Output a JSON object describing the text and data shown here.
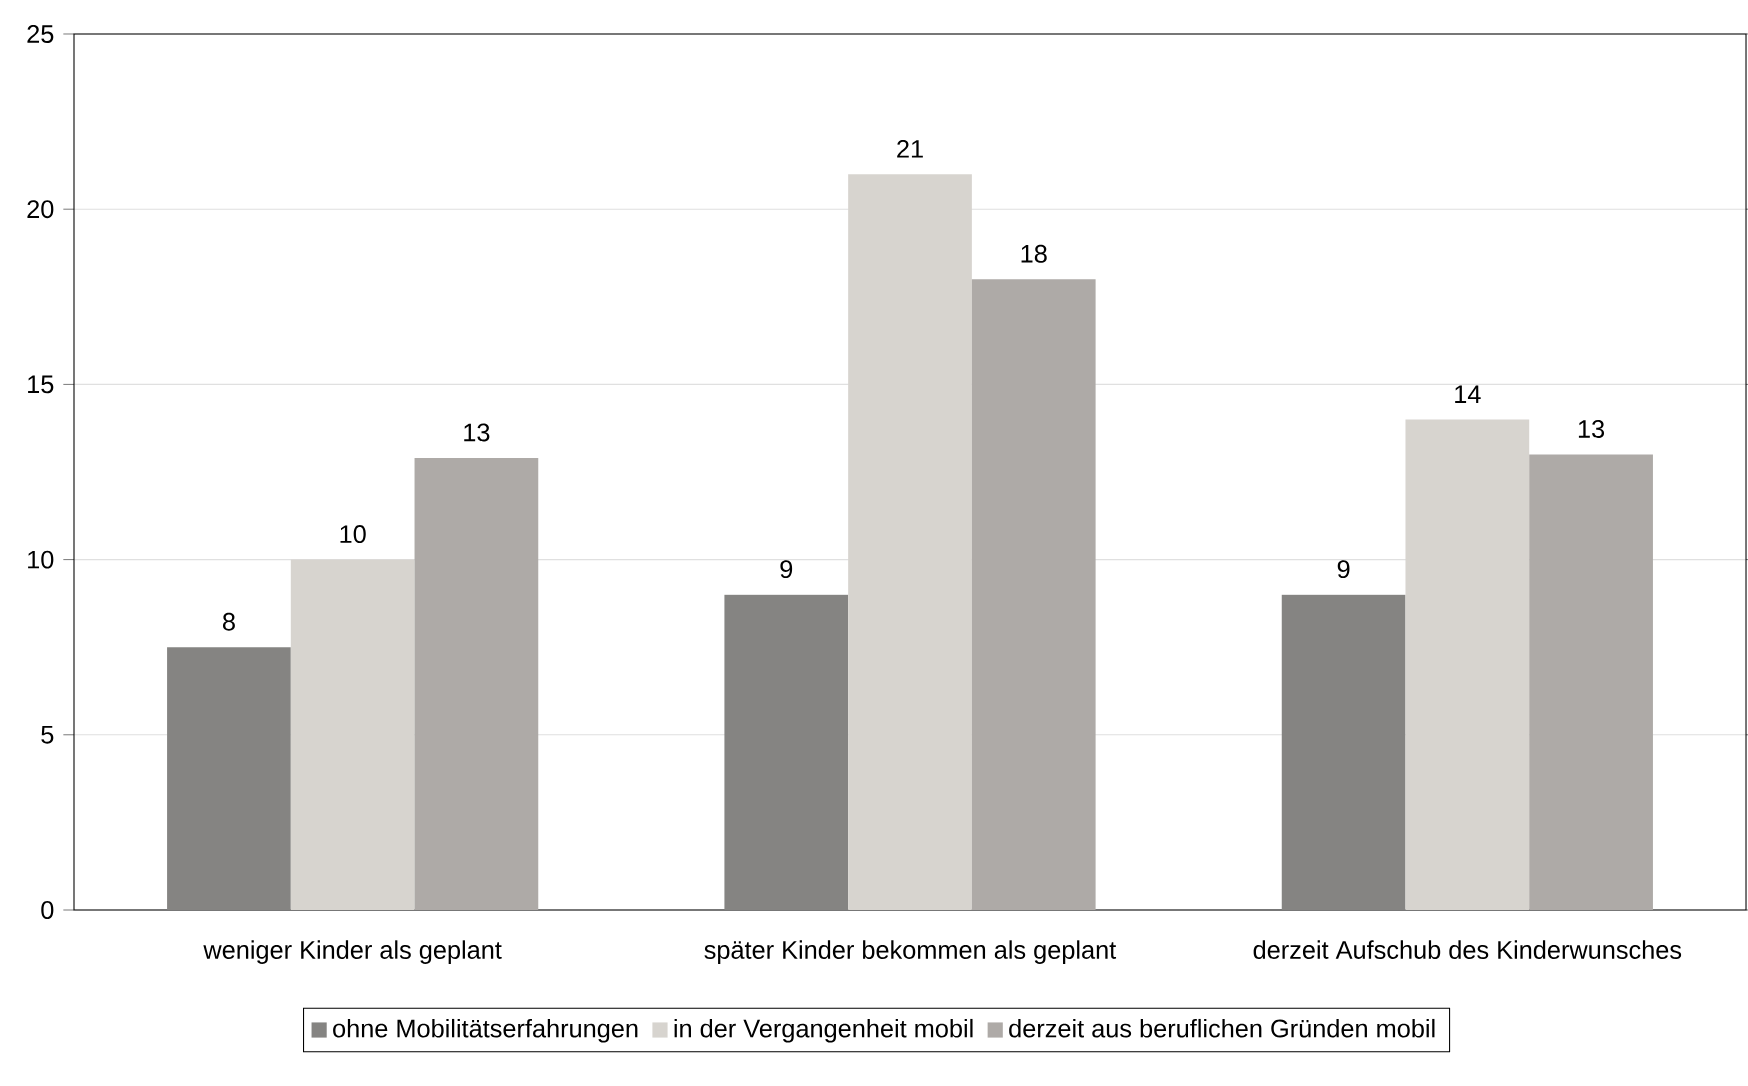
{
  "chart_data": {
    "type": "bar",
    "categories": [
      "weniger Kinder als geplant",
      "später Kinder bekommen als geplant",
      "derzeit Aufschub des Kinderwunsches"
    ],
    "series": [
      {
        "name": "ohne Mobilitätserfahrungen",
        "color": "#858482",
        "values": [
          7.5,
          9,
          9
        ],
        "value_labels": [
          "8",
          "9",
          "9"
        ]
      },
      {
        "name": "in der Vergangenheit mobil",
        "color": "#d7d4cf",
        "values": [
          10,
          21,
          14
        ],
        "value_labels": [
          "10",
          "21",
          "14"
        ]
      },
      {
        "name": "derzeit aus beruflichen Gründen mobil",
        "color": "#aeaaa7",
        "values": [
          12.9,
          18,
          13
        ],
        "value_labels": [
          "13",
          "18",
          "13"
        ]
      }
    ],
    "ylim": [
      0,
      25
    ],
    "yticks": [
      0,
      5,
      10,
      15,
      20,
      25
    ],
    "grid": "y",
    "legend": "bottom"
  }
}
